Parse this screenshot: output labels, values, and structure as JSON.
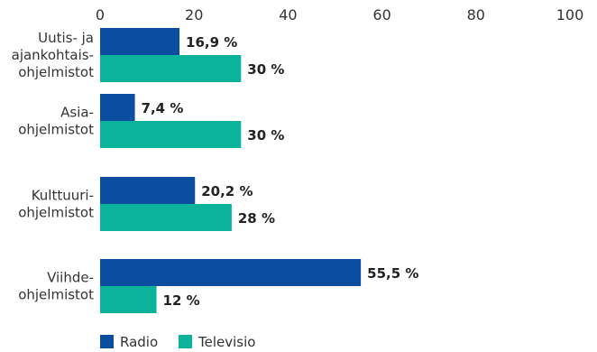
{
  "chart_data": {
    "type": "bar",
    "orientation": "horizontal",
    "categories": [
      [
        "Uutis- ja",
        "ajankohtais-",
        "ohjelmistot"
      ],
      [
        "Asia-",
        "ohjelmistot"
      ],
      [
        "Kulttuuri-",
        "ohjelmistot"
      ],
      [
        "Viihde-",
        "ohjelmistot"
      ]
    ],
    "series": [
      {
        "name": "Radio",
        "color": "#0b4d9e",
        "values": [
          16.9,
          7.4,
          20.2,
          55.5
        ],
        "labels": [
          "16,9 %",
          "7,4 %",
          "20,2 %",
          "55,5 %"
        ]
      },
      {
        "name": "Televisio",
        "color": "#0bb39a",
        "values": [
          30,
          30,
          28,
          12
        ],
        "labels": [
          "30 %",
          "30 %",
          "28 %",
          "12 %"
        ]
      }
    ],
    "xlim": [
      0,
      100
    ],
    "xticks": [
      0,
      20,
      40,
      60,
      80,
      100
    ],
    "xtick_labels": [
      "0",
      "20",
      "40",
      "60",
      "80",
      "100"
    ],
    "x_axis_position": "top",
    "grid": false,
    "legend_position": "bottom-left"
  }
}
